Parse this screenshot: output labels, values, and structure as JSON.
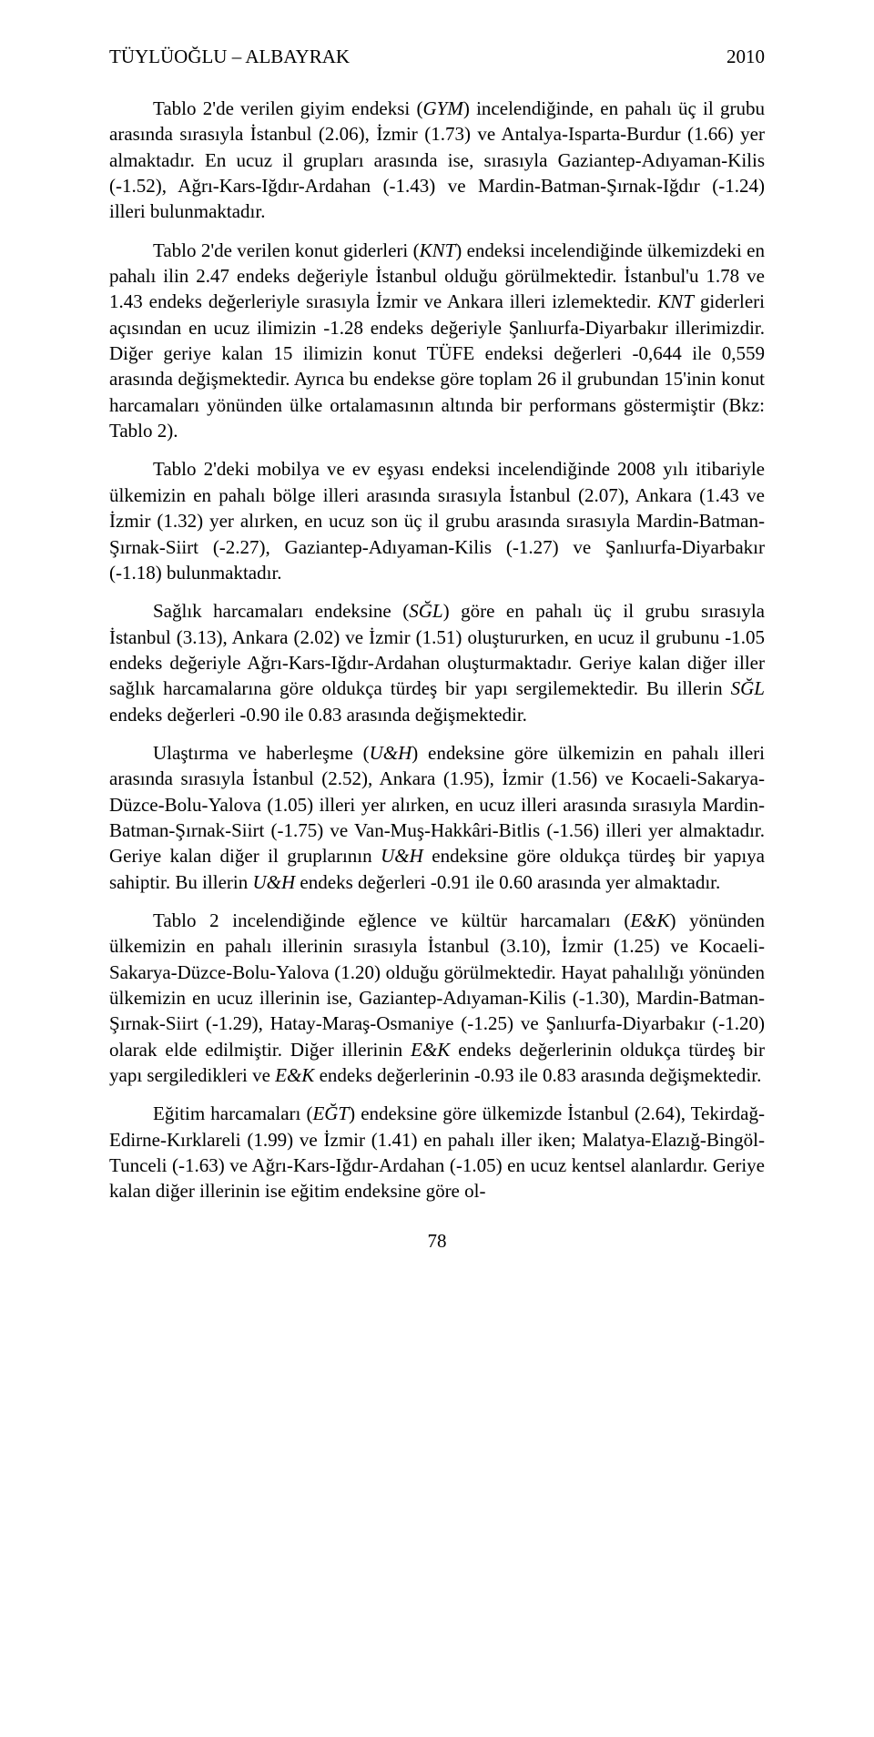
{
  "header": {
    "authors": "TÜYLÜOĞLU – ALBAYRAK",
    "year": "2010"
  },
  "paragraphs": {
    "p1_a": "Tablo 2'de verilen giyim endeksi (",
    "p1_i1": "GYM",
    "p1_b": ") incelendiğinde, en pahalı üç il grubu arasında sırasıyla İstanbul (2.06), İzmir (1.73) ve Antalya-Isparta-Burdur (1.66) yer almaktadır. En ucuz il grupları arasında ise, sırasıyla Gaziantep-Adıyaman-Kilis (-1.52), Ağrı-Kars-Iğdır-Ardahan (-1.43) ve Mardin-Batman-Şırnak-Iğdır (-1.24) illeri bulunmaktadır.",
    "p2_a": "Tablo 2'de verilen konut giderleri (",
    "p2_i1": "KNT",
    "p2_b": ") endeksi incelendiğinde ülkemizdeki en pahalı ilin 2.47 endeks değeriyle İstanbul olduğu görülmektedir. İstanbul'u 1.78 ve 1.43 endeks değerleriyle sırasıyla İzmir ve Ankara illeri izlemektedir. ",
    "p2_i2": "KNT",
    "p2_c": " giderleri açısından en ucuz ilimizin -1.28 endeks değeriyle Şanlıurfa-Diyarbakır illerimizdir. Diğer geriye kalan 15 ilimizin konut TÜFE endeksi değerleri -0,644 ile 0,559 arasında değişmektedir. Ayrıca bu endekse göre toplam 26 il grubundan 15'inin konut harcamaları yönünden ülke ortalamasının altında bir performans göstermiştir (Bkz: Tablo 2).",
    "p3": "Tablo 2'deki mobilya ve ev eşyası endeksi incelendiğinde 2008 yılı itibariyle ülkemizin en pahalı bölge illeri arasında sırasıyla İstanbul (2.07), Ankara (1.43 ve İzmir (1.32) yer alırken, en ucuz son üç il grubu arasında sırasıyla Mardin-Batman-Şırnak-Siirt (-2.27), Gaziantep-Adıyaman-Kilis (-1.27) ve Şanlıurfa-Diyarbakır (-1.18) bulunmaktadır.",
    "p4_a": "Sağlık harcamaları endeksine (",
    "p4_i1": "SĞL",
    "p4_b": ") göre en pahalı üç il grubu sırasıyla İstanbul (3.13), Ankara (2.02) ve İzmir (1.51) oluştururken, en ucuz il grubunu -1.05 endeks değeriyle Ağrı-Kars-Iğdır-Ardahan oluşturmaktadır. Geriye kalan diğer iller sağlık harcamalarına göre oldukça türdeş bir yapı sergilemektedir. Bu illerin ",
    "p4_i2": "SĞL",
    "p4_c": " endeks değerleri -0.90 ile 0.83 arasında değişmektedir.",
    "p5_a": "Ulaştırma ve haberleşme (",
    "p5_i1": "U&H",
    "p5_b": ") endeksine göre ülkemizin en pahalı illeri arasında sırasıyla İstanbul (2.52), Ankara (1.95), İzmir (1.56) ve Kocaeli-Sakarya-Düzce-Bolu-Yalova (1.05) illeri yer alırken, en ucuz illeri arasında sırasıyla Mardin-Batman-Şırnak-Siirt (-1.75) ve Van-Muş-Hakkâri-Bitlis (-1.56) illeri yer almaktadır. Geriye kalan diğer il gruplarının ",
    "p5_i2": "U&H",
    "p5_c": " endeksine göre oldukça türdeş bir yapıya sahiptir. Bu illerin ",
    "p5_i3": "U&H",
    "p5_d": " endeks değerleri -0.91 ile 0.60 arasında yer almaktadır.",
    "p6_a": "Tablo 2 incelendiğinde eğlence ve kültür harcamaları (",
    "p6_i1": "E&K",
    "p6_b": ") yönünden ülkemizin en pahalı illerinin sırasıyla İstanbul (3.10), İzmir (1.25) ve Kocaeli-Sakarya-Düzce-Bolu-Yalova (1.20) olduğu görülmektedir. Hayat pahalılığı yönünden ülkemizin en ucuz illerinin ise, Gaziantep-Adıyaman-Kilis (-1.30), Mardin-Batman-Şırnak-Siirt (-1.29), Hatay-Maraş-Osmaniye (-1.25) ve Şanlıurfa-Diyarbakır (-1.20) olarak elde edilmiştir. Diğer illerinin ",
    "p6_i2": "E&K",
    "p6_c": " endeks değerlerinin oldukça türdeş bir yapı sergiledikleri ve ",
    "p6_i3": "E&K",
    "p6_d": " endeks değerlerinin -0.93 ile 0.83 arasında değişmektedir.",
    "p7_a": "Eğitim harcamaları (",
    "p7_i1": "EĞT",
    "p7_b": ") endeksine göre ülkemizde İstanbul (2.64), Tekirdağ-Edirne-Kırklareli (1.99) ve İzmir (1.41) en pahalı iller iken; Malatya-Elazığ-Bingöl-Tunceli (-1.63) ve Ağrı-Kars-Iğdır-Ardahan (-1.05) en ucuz kentsel alanlardır. Geriye kalan diğer illerinin ise eğitim endeksine göre ol-"
  },
  "page_number": "78"
}
